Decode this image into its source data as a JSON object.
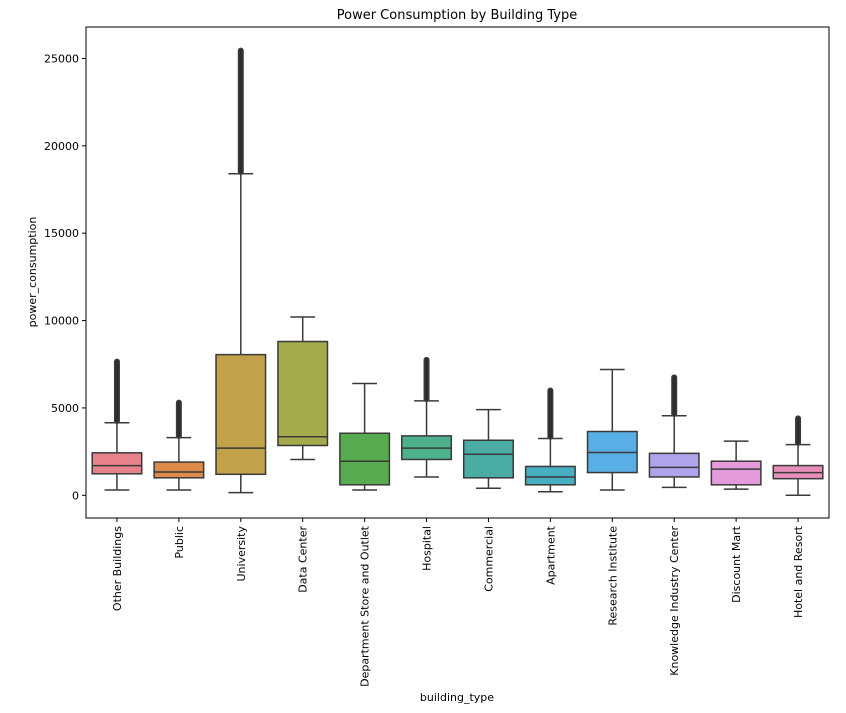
{
  "chart_data": {
    "type": "boxplot",
    "title": "Power Consumption by Building Type",
    "xlabel": "building_type",
    "ylabel": "power_consumption",
    "ylim": [
      -1300,
      26800
    ],
    "yticks": [
      0,
      5000,
      10000,
      15000,
      20000,
      25000
    ],
    "line_color": "#3a3a3a",
    "boxes": [
      {
        "category": "Other Buildings",
        "color": "#e8828a",
        "whisker_low": 300,
        "q1": 1230,
        "median": 1700,
        "q3": 2430,
        "whisker_high": 4150,
        "outliers_min": 4250,
        "outliers_max": 7650
      },
      {
        "category": "Public",
        "color": "#de8a4a",
        "whisker_low": 300,
        "q1": 1000,
        "median": 1330,
        "q3": 1900,
        "whisker_high": 3300,
        "outliers_min": 3400,
        "outliers_max": 5300
      },
      {
        "category": "University",
        "color": "#c1a14a",
        "whisker_low": 150,
        "q1": 1200,
        "median": 2700,
        "q3": 8050,
        "whisker_high": 18400,
        "outliers_min": 18500,
        "outliers_max": 25450
      },
      {
        "category": "Data Center",
        "color": "#a5ab4c",
        "whisker_low": 2050,
        "q1": 2850,
        "median": 3350,
        "q3": 8800,
        "whisker_high": 10200,
        "outliers_min": null,
        "outliers_max": null
      },
      {
        "category": "Department Store and Outlet",
        "color": "#55ab4d",
        "whisker_low": 300,
        "q1": 600,
        "median": 1950,
        "q3": 3550,
        "whisker_high": 6400,
        "outliers_min": null,
        "outliers_max": null
      },
      {
        "category": "Hospital",
        "color": "#4db28c",
        "whisker_low": 1050,
        "q1": 2050,
        "median": 2700,
        "q3": 3400,
        "whisker_high": 5400,
        "outliers_min": 5500,
        "outliers_max": 7750
      },
      {
        "category": "Commercial",
        "color": "#4aaca3",
        "whisker_low": 400,
        "q1": 1000,
        "median": 2350,
        "q3": 3150,
        "whisker_high": 4900,
        "outliers_min": null,
        "outliers_max": null
      },
      {
        "category": "Apartment",
        "color": "#46aec0",
        "whisker_low": 200,
        "q1": 600,
        "median": 1050,
        "q3": 1650,
        "whisker_high": 3250,
        "outliers_min": 3350,
        "outliers_max": 6000
      },
      {
        "category": "Research Institute",
        "color": "#5aaee6",
        "whisker_low": 300,
        "q1": 1300,
        "median": 2450,
        "q3": 3650,
        "whisker_high": 7200,
        "outliers_min": null,
        "outliers_max": null
      },
      {
        "category": "Knowledge Industry Center",
        "color": "#b1a3ea",
        "whisker_low": 450,
        "q1": 1050,
        "median": 1600,
        "q3": 2400,
        "whisker_high": 4550,
        "outliers_min": 4650,
        "outliers_max": 6750
      },
      {
        "category": "Discount Mart",
        "color": "#e59adc",
        "whisker_low": 350,
        "q1": 600,
        "median": 1500,
        "q3": 1950,
        "whisker_high": 3100,
        "outliers_min": null,
        "outliers_max": null
      },
      {
        "category": "Hotel and Resort",
        "color": "#e98eb9",
        "whisker_low": 0,
        "q1": 950,
        "median": 1300,
        "q3": 1700,
        "whisker_high": 2900,
        "outliers_min": 3000,
        "outliers_max": 4400
      }
    ]
  }
}
